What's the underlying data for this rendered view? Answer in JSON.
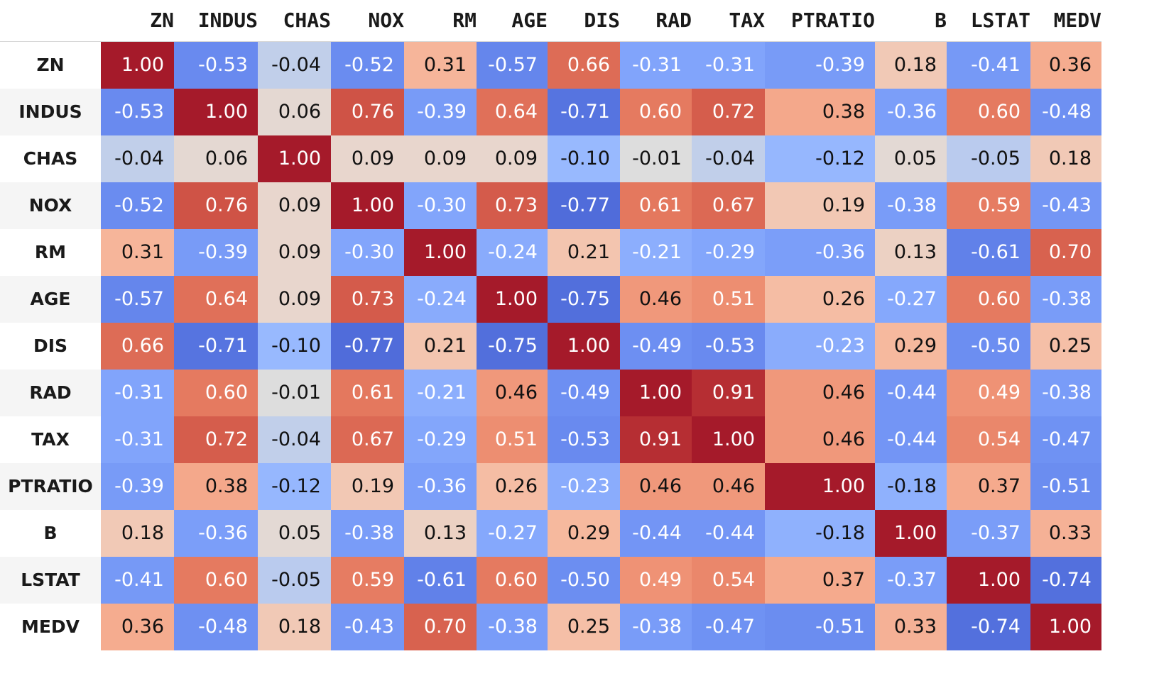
{
  "chart_data": {
    "type": "heatmap",
    "colormap": "coolwarm",
    "vmin": -1,
    "vmax": 1,
    "columns": [
      "ZN",
      "INDUS",
      "CHAS",
      "NOX",
      "RM",
      "AGE",
      "DIS",
      "RAD",
      "TAX",
      "PTRATIO",
      "B",
      "LSTAT",
      "MEDV"
    ],
    "rows": [
      "ZN",
      "INDUS",
      "CHAS",
      "NOX",
      "RM",
      "AGE",
      "DIS",
      "RAD",
      "TAX",
      "PTRATIO",
      "B",
      "LSTAT",
      "MEDV"
    ],
    "values": [
      [
        1.0,
        -0.53,
        -0.04,
        -0.52,
        0.31,
        -0.57,
        0.66,
        -0.31,
        -0.31,
        -0.39,
        0.18,
        -0.41,
        0.36
      ],
      [
        -0.53,
        1.0,
        0.06,
        0.76,
        -0.39,
        0.64,
        -0.71,
        0.6,
        0.72,
        0.38,
        -0.36,
        0.6,
        -0.48
      ],
      [
        -0.04,
        0.06,
        1.0,
        0.09,
        0.09,
        0.09,
        -0.1,
        -0.01,
        -0.04,
        -0.12,
        0.05,
        -0.05,
        0.18
      ],
      [
        -0.52,
        0.76,
        0.09,
        1.0,
        -0.3,
        0.73,
        -0.77,
        0.61,
        0.67,
        0.19,
        -0.38,
        0.59,
        -0.43
      ],
      [
        0.31,
        -0.39,
        0.09,
        -0.3,
        1.0,
        -0.24,
        0.21,
        -0.21,
        -0.29,
        -0.36,
        0.13,
        -0.61,
        0.7
      ],
      [
        -0.57,
        0.64,
        0.09,
        0.73,
        -0.24,
        1.0,
        -0.75,
        0.46,
        0.51,
        0.26,
        -0.27,
        0.6,
        -0.38
      ],
      [
        0.66,
        -0.71,
        -0.1,
        -0.77,
        0.21,
        -0.75,
        1.0,
        -0.49,
        -0.53,
        -0.23,
        0.29,
        -0.5,
        0.25
      ],
      [
        -0.31,
        0.6,
        -0.01,
        0.61,
        -0.21,
        0.46,
        -0.49,
        1.0,
        0.91,
        0.46,
        -0.44,
        0.49,
        -0.38
      ],
      [
        -0.31,
        0.72,
        -0.04,
        0.67,
        -0.29,
        0.51,
        -0.53,
        0.91,
        1.0,
        0.46,
        -0.44,
        0.54,
        -0.47
      ],
      [
        -0.39,
        0.38,
        -0.12,
        0.19,
        -0.36,
        0.26,
        -0.23,
        0.46,
        0.46,
        1.0,
        -0.18,
        0.37,
        -0.51
      ],
      [
        0.18,
        -0.36,
        0.05,
        -0.38,
        0.13,
        -0.27,
        0.29,
        -0.44,
        -0.44,
        -0.18,
        1.0,
        -0.37,
        0.33
      ],
      [
        -0.41,
        0.6,
        -0.05,
        0.59,
        -0.61,
        0.6,
        -0.5,
        0.49,
        0.54,
        0.37,
        -0.37,
        1.0,
        -0.74
      ],
      [
        0.36,
        -0.48,
        0.18,
        -0.43,
        0.7,
        -0.38,
        0.25,
        -0.38,
        -0.47,
        -0.51,
        0.33,
        -0.74,
        1.0
      ]
    ]
  }
}
